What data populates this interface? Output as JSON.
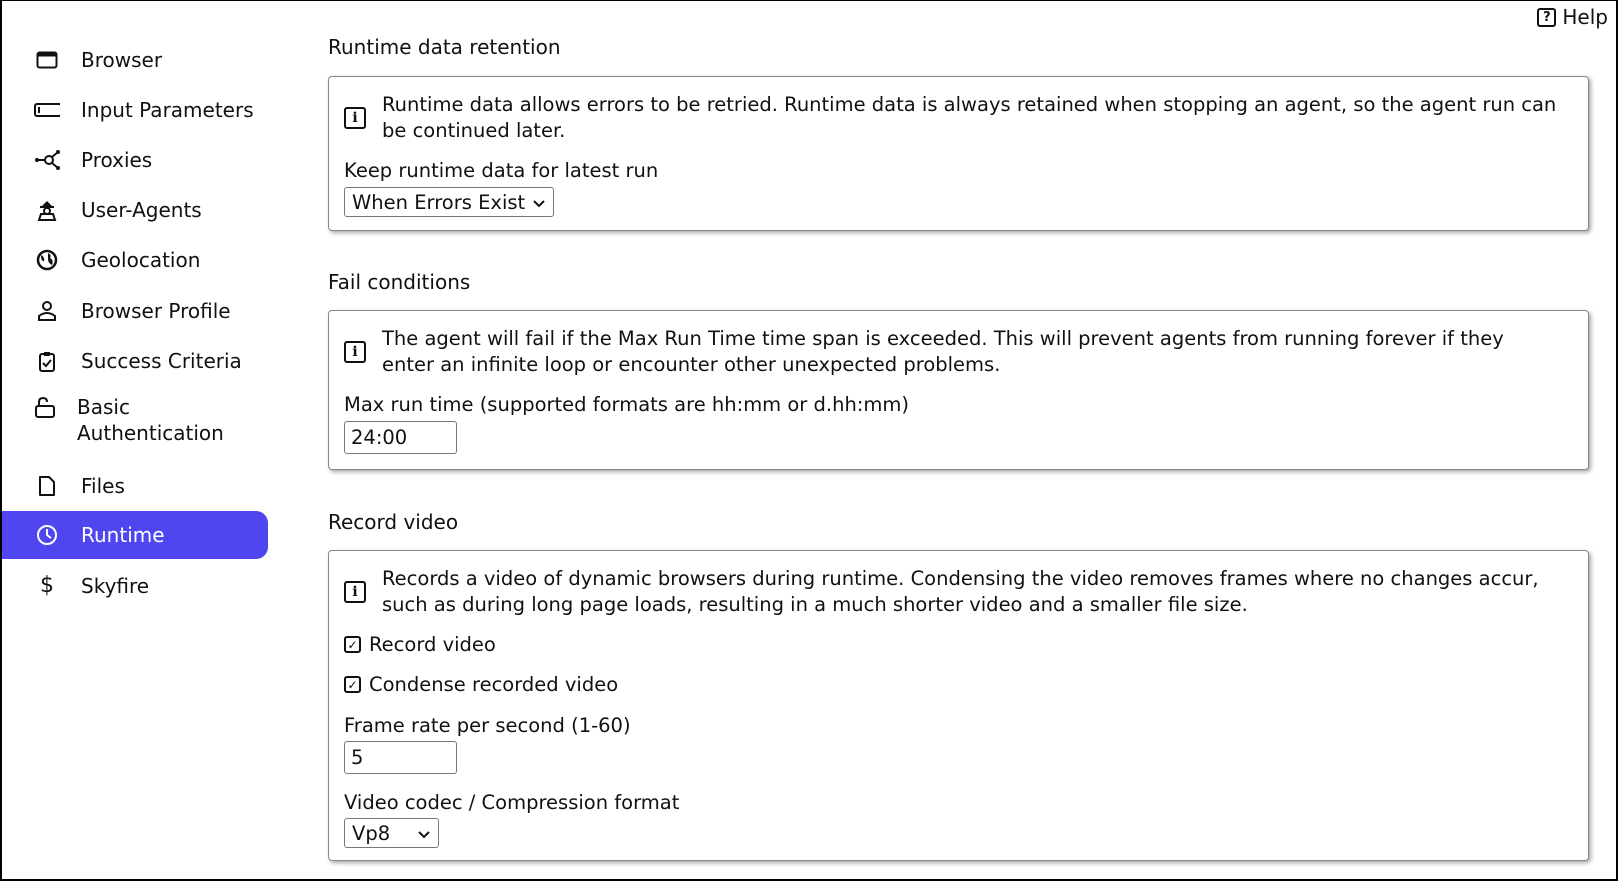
{
  "help": {
    "label": "Help",
    "icon": "question-square-icon"
  },
  "sidebar": {
    "items": [
      {
        "label": "Browser",
        "icon": "browser-window-icon"
      },
      {
        "label": "Input Parameters",
        "icon": "input-field-icon"
      },
      {
        "label": "Proxies",
        "icon": "network-nodes-icon"
      },
      {
        "label": "User-Agents",
        "icon": "spy-agent-icon"
      },
      {
        "label": "Geolocation",
        "icon": "globe-icon"
      },
      {
        "label": "Browser Profile",
        "icon": "user-profile-icon"
      },
      {
        "label": "Success Criteria",
        "icon": "clipboard-check-icon"
      },
      {
        "label": "Basic",
        "label2": "Authentication",
        "icon": "unlock-icon"
      },
      {
        "label": "Files",
        "icon": "file-icon"
      },
      {
        "label": "Runtime",
        "icon": "clock-icon",
        "active": true
      },
      {
        "label": "Skyfire",
        "icon": "dollar-icon"
      }
    ],
    "active_color": "#4f46f0"
  },
  "sections": {
    "retention": {
      "title": "Runtime data retention",
      "desc": "Runtime data allows errors to be retried. Runtime data is always retained when stopping an agent, so the agent run can be continued later.",
      "field_label": "Keep runtime data for latest run",
      "value": "When Errors Exist"
    },
    "fail": {
      "title": "Fail conditions",
      "desc": "The agent will fail if the Max Run Time time span is exceeded. This will prevent agents from running forever if they enter an infinite loop or encounter other unexpected problems.",
      "field_label": "Max run time (supported formats are hh:mm or d.hh:mm)",
      "value": "24:00"
    },
    "video": {
      "title": "Record video",
      "desc": "Records a video of dynamic browsers during runtime. Condensing the video removes frames where no changes accur, such as during long page loads, resulting in a much shorter video and a smaller file size.",
      "record_label": "Record video",
      "record_checked": true,
      "condense_label": "Condense recorded video",
      "condense_checked": true,
      "fps_label": "Frame rate per second (1-60)",
      "fps_value": "5",
      "codec_label": "Video codec / Compression format",
      "codec_value": "Vp8"
    }
  }
}
